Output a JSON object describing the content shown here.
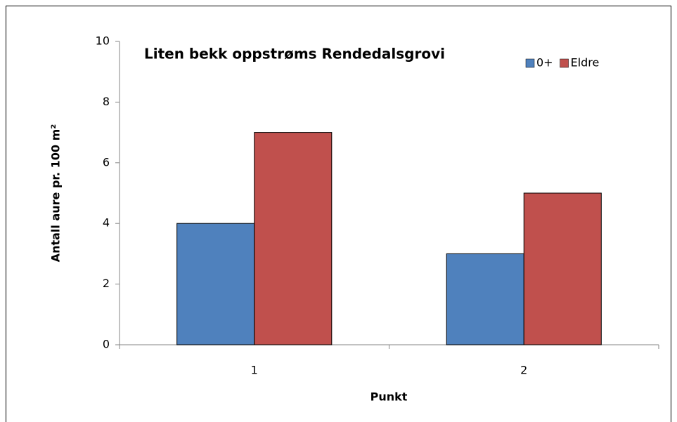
{
  "chart_data": {
    "type": "bar",
    "title": "Liten bekk oppstrøms Rendedalsgrovi",
    "x_label": "Punkt",
    "y_label": "Antall aure pr. 100 m²",
    "categories": [
      "1",
      "2"
    ],
    "series": [
      {
        "name": "0+",
        "color": "#4f81bd",
        "values": [
          4,
          3
        ]
      },
      {
        "name": "Eldre",
        "color": "#c0504d",
        "values": [
          7,
          5
        ]
      }
    ],
    "ylim": [
      0,
      10
    ],
    "yticks": [
      0,
      2,
      4,
      6,
      8,
      10
    ],
    "grid": false,
    "legend": "top-right"
  }
}
